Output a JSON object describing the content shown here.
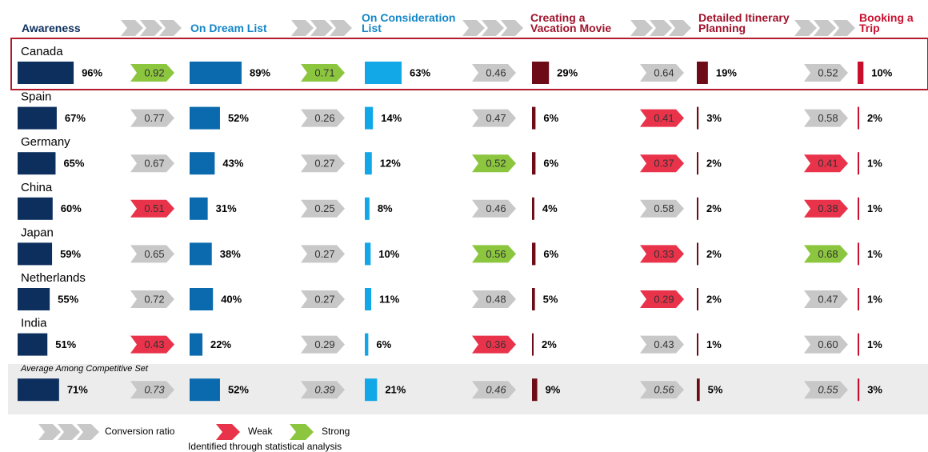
{
  "stages": [
    {
      "name": "Awareness",
      "header_color": "#0d2f5e",
      "color": "#0d2f5e"
    },
    {
      "name": "On Dream List",
      "header_color": "#1386c8",
      "color": "#0a6aad"
    },
    {
      "name": "On Consideration List",
      "header_color": "#1386c8",
      "color": "#12a8e8"
    },
    {
      "name": "Creating a Vacation Movie",
      "header_color": "#a0132c",
      "color": "#6d0c17"
    },
    {
      "name": "Detailed Itinerary Planning",
      "header_color": "#a0132c",
      "color": "#6d0c17"
    },
    {
      "name": "Booking a Trip",
      "header_color": "#c8102e",
      "color": "#c8102e"
    }
  ],
  "rows": [
    {
      "name": "Canada",
      "values": [
        96,
        89,
        63,
        29,
        19,
        10
      ],
      "value_labels": [
        "96%",
        "89%",
        "63%",
        "29%",
        "19%",
        "10%"
      ],
      "ratios": [
        0.92,
        0.71,
        0.46,
        0.64,
        0.52
      ],
      "ratio_labels": [
        "0.92",
        "0.71",
        "0.46",
        "0.64",
        "0.52"
      ],
      "ratio_colors": [
        "#8cc63f",
        "#8cc63f",
        "#c8c8c8",
        "#c8c8c8",
        "#c8c8c8"
      ]
    },
    {
      "name": "Spain",
      "values": [
        67,
        52,
        14,
        6,
        3,
        2
      ],
      "value_labels": [
        "67%",
        "52%",
        "14%",
        "6%",
        "3%",
        "2%"
      ],
      "ratios": [
        0.77,
        0.26,
        0.47,
        0.41,
        0.58
      ],
      "ratio_labels": [
        "0.77",
        "0.26",
        "0.47",
        "0.41",
        "0.58"
      ],
      "ratio_colors": [
        "#c8c8c8",
        "#c8c8c8",
        "#c8c8c8",
        "#e8334a",
        "#c8c8c8"
      ]
    },
    {
      "name": "Germany",
      "values": [
        65,
        43,
        12,
        6,
        2,
        1
      ],
      "value_labels": [
        "65%",
        "43%",
        "12%",
        "6%",
        "2%",
        "1%"
      ],
      "ratios": [
        0.67,
        0.27,
        0.52,
        0.37,
        0.41
      ],
      "ratio_labels": [
        "0.67",
        "0.27",
        "0.52",
        "0.37",
        "0.41"
      ],
      "ratio_colors": [
        "#c8c8c8",
        "#c8c8c8",
        "#8cc63f",
        "#e8334a",
        "#e8334a"
      ]
    },
    {
      "name": "China",
      "values": [
        60,
        31,
        8,
        4,
        2,
        1
      ],
      "value_labels": [
        "60%",
        "31%",
        "8%",
        "4%",
        "2%",
        "1%"
      ],
      "ratios": [
        0.51,
        0.25,
        0.46,
        0.58,
        0.38
      ],
      "ratio_labels": [
        "0.51",
        "0.25",
        "0.46",
        "0.58",
        "0.38"
      ],
      "ratio_colors": [
        "#e8334a",
        "#c8c8c8",
        "#c8c8c8",
        "#c8c8c8",
        "#e8334a"
      ]
    },
    {
      "name": "Japan",
      "values": [
        59,
        38,
        10,
        6,
        2,
        1
      ],
      "value_labels": [
        "59%",
        "38%",
        "10%",
        "6%",
        "2%",
        "1%"
      ],
      "ratios": [
        0.65,
        0.27,
        0.56,
        0.33,
        0.68
      ],
      "ratio_labels": [
        "0.65",
        "0.27",
        "0.56",
        "0.33",
        "0.68"
      ],
      "ratio_colors": [
        "#c8c8c8",
        "#c8c8c8",
        "#8cc63f",
        "#e8334a",
        "#8cc63f"
      ]
    },
    {
      "name": "Netherlands",
      "values": [
        55,
        40,
        11,
        5,
        2,
        1
      ],
      "value_labels": [
        "55%",
        "40%",
        "11%",
        "5%",
        "2%",
        "1%"
      ],
      "ratios": [
        0.72,
        0.27,
        0.48,
        0.29,
        0.47
      ],
      "ratio_labels": [
        "0.72",
        "0.27",
        "0.48",
        "0.29",
        "0.47"
      ],
      "ratio_colors": [
        "#c8c8c8",
        "#c8c8c8",
        "#c8c8c8",
        "#e8334a",
        "#c8c8c8"
      ]
    },
    {
      "name": "India",
      "values": [
        51,
        22,
        6,
        2,
        1,
        1
      ],
      "value_labels": [
        "51%",
        "22%",
        "6%",
        "2%",
        "1%",
        "1%"
      ],
      "ratios": [
        0.43,
        0.29,
        0.36,
        0.43,
        0.6
      ],
      "ratio_labels": [
        "0.43",
        "0.29",
        "0.36",
        "0.43",
        "0.60"
      ],
      "ratio_colors": [
        "#e8334a",
        "#c8c8c8",
        "#e8334a",
        "#c8c8c8",
        "#c8c8c8"
      ]
    },
    {
      "name": "Average Among Competitive Set",
      "values": [
        71,
        52,
        21,
        9,
        5,
        3
      ],
      "value_labels": [
        "71%",
        "52%",
        "21%",
        "9%",
        "5%",
        "3%"
      ],
      "ratios": [
        0.73,
        0.39,
        0.46,
        0.56,
        0.55
      ],
      "ratio_labels": [
        "0.73",
        "0.39",
        "0.46",
        "0.56",
        "0.55"
      ],
      "ratio_colors": [
        "#c8c8c8",
        "#c8c8c8",
        "#c8c8c8",
        "#c8c8c8",
        "#c8c8c8"
      ]
    }
  ],
  "legend": [
    {
      "label": "Conversion ratio",
      "color": "#c8c8c8"
    },
    {
      "label": "Weak",
      "color": "#e8334a"
    },
    {
      "label": "Strong",
      "color": "#8cc63f"
    }
  ],
  "legend_note": "Identified through statistical analysis"
}
